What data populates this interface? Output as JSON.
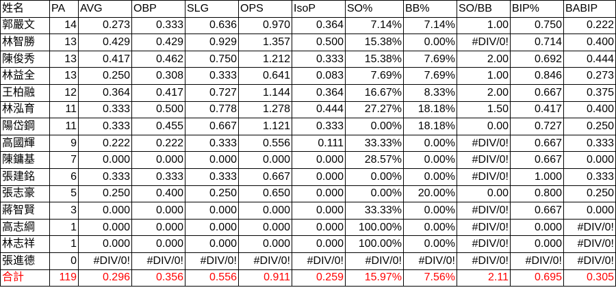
{
  "headers": [
    "姓名",
    "PA",
    "AVG",
    "OBP",
    "SLG",
    "OPS",
    "IsoP",
    "SO%",
    "BB%",
    "SO/BB",
    "BIP%",
    "BABIP"
  ],
  "rows": [
    [
      "郭嚴文",
      "14",
      "0.273",
      "0.333",
      "0.636",
      "0.970",
      "0.364",
      "7.14%",
      "7.14%",
      "1.00",
      "0.750",
      "0.222"
    ],
    [
      "林智勝",
      "13",
      "0.429",
      "0.429",
      "0.929",
      "1.357",
      "0.500",
      "15.38%",
      "0.00%",
      "#DIV/0!",
      "0.714",
      "0.400"
    ],
    [
      "陳俊秀",
      "13",
      "0.417",
      "0.462",
      "0.750",
      "1.212",
      "0.333",
      "15.38%",
      "7.69%",
      "2.00",
      "0.692",
      "0.444"
    ],
    [
      "林益全",
      "13",
      "0.250",
      "0.308",
      "0.333",
      "0.641",
      "0.083",
      "7.69%",
      "7.69%",
      "1.00",
      "0.846",
      "0.273"
    ],
    [
      "王柏融",
      "12",
      "0.364",
      "0.417",
      "0.727",
      "1.144",
      "0.364",
      "16.67%",
      "8.33%",
      "2.00",
      "0.667",
      "0.375"
    ],
    [
      "林泓育",
      "11",
      "0.333",
      "0.500",
      "0.778",
      "1.278",
      "0.444",
      "27.27%",
      "18.18%",
      "1.50",
      "0.417",
      "0.400"
    ],
    [
      "陽岱鋼",
      "11",
      "0.333",
      "0.455",
      "0.667",
      "1.121",
      "0.333",
      "0.00%",
      "18.18%",
      "0.00",
      "0.727",
      "0.250"
    ],
    [
      "高國輝",
      "9",
      "0.222",
      "0.222",
      "0.333",
      "0.556",
      "0.111",
      "33.33%",
      "0.00%",
      "#DIV/0!",
      "0.667",
      "0.333"
    ],
    [
      "陳鏞基",
      "7",
      "0.000",
      "0.000",
      "0.000",
      "0.000",
      "0.000",
      "28.57%",
      "0.00%",
      "#DIV/0!",
      "0.667",
      "0.000"
    ],
    [
      "張建銘",
      "6",
      "0.333",
      "0.333",
      "0.333",
      "0.667",
      "0.000",
      "0.00%",
      "0.00%",
      "#DIV/0!",
      "1.000",
      "0.333"
    ],
    [
      "張志豪",
      "5",
      "0.250",
      "0.400",
      "0.250",
      "0.650",
      "0.000",
      "0.00%",
      "20.00%",
      "0.00",
      "0.800",
      "0.250"
    ],
    [
      "蔣智賢",
      "3",
      "0.000",
      "0.000",
      "0.000",
      "0.000",
      "0.000",
      "33.33%",
      "0.00%",
      "#DIV/0!",
      "0.667",
      "0.000"
    ],
    [
      "高志綱",
      "1",
      "0.000",
      "0.000",
      "0.000",
      "0.000",
      "0.000",
      "100.00%",
      "0.00%",
      "#DIV/0!",
      "0.000",
      "#DIV/0!"
    ],
    [
      "林志祥",
      "1",
      "0.000",
      "0.000",
      "0.000",
      "0.000",
      "0.000",
      "100.00%",
      "0.00%",
      "#DIV/0!",
      "0.000",
      "#DIV/0!"
    ],
    [
      "張進德",
      "0",
      "#DIV/0!",
      "#DIV/0!",
      "#DIV/0!",
      "#DIV/0!",
      "#DIV/0!",
      "#DIV/0!",
      "#DIV/0!",
      "#DIV/0!",
      "#DIV/0!",
      "#DIV/0!"
    ]
  ],
  "total": [
    "合計",
    "119",
    "0.296",
    "0.356",
    "0.556",
    "0.911",
    "0.259",
    "15.97%",
    "7.56%",
    "2.11",
    "0.695",
    "0.305"
  ],
  "colors": {
    "total_text": "#ff0000",
    "border": "#000000",
    "background": "#ffffff"
  }
}
